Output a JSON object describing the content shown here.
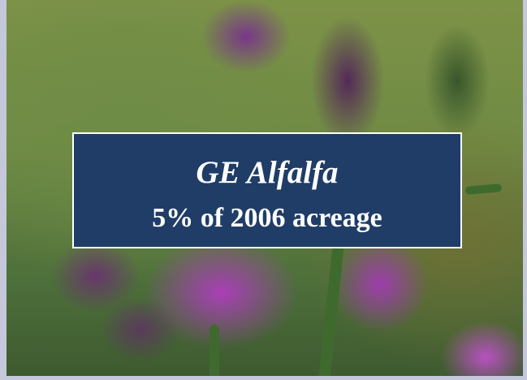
{
  "title": "GE Alfalfa",
  "subtitle": "5% of 2006 acreage"
}
